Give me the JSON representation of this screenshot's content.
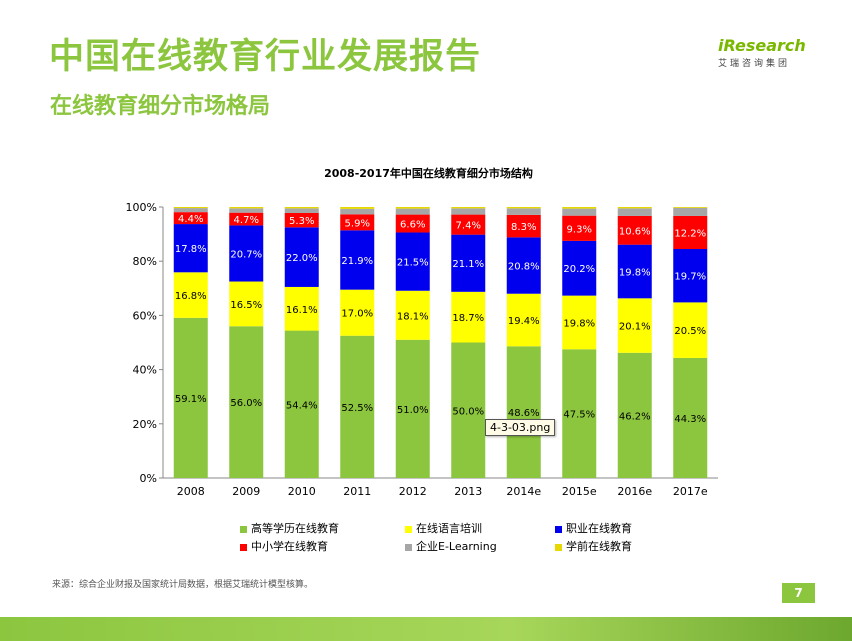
{
  "header": {
    "title": "中国在线教育行业发展报告",
    "subtitle": "在线教育细分市场格局"
  },
  "logo": {
    "brand": "iResearch",
    "tagline": "艾瑞咨询集团"
  },
  "footer": {
    "source": "来源：综合企业财报及国家统计局数据，根据艾瑞统计模型核算。",
    "page_number": "7"
  },
  "tooltip": {
    "text": "4-3-03.png"
  },
  "colors": {
    "brand_green": "#8cc63f"
  },
  "chart_data": {
    "type": "bar",
    "stacked": true,
    "title": "2008-2017年中国在线教育细分市场结构",
    "xlabel": "",
    "ylabel": "",
    "ylim": [
      0,
      100
    ],
    "yticks": [
      "0%",
      "20%",
      "40%",
      "60%",
      "80%",
      "100%"
    ],
    "categories": [
      "2008",
      "2009",
      "2010",
      "2011",
      "2012",
      "2013",
      "2014e",
      "2015e",
      "2016e",
      "2017e"
    ],
    "grid": false,
    "legend_position": "bottom",
    "series": [
      {
        "name": "高等学历在线教育",
        "color": "#8cc63f",
        "values": [
          59.1,
          56.0,
          54.4,
          52.5,
          51.0,
          50.0,
          48.6,
          47.5,
          46.2,
          44.3
        ],
        "labels": [
          "59.1%",
          "56.0%",
          "54.4%",
          "52.5%",
          "51.0%",
          "50.0%",
          "48.6%",
          "47.5%",
          "46.2%",
          "44.3%"
        ]
      },
      {
        "name": "在线语言培训",
        "color": "#ffff00",
        "values": [
          16.8,
          16.5,
          16.1,
          17.0,
          18.1,
          18.7,
          19.4,
          19.8,
          20.1,
          20.5
        ],
        "labels": [
          "16.8%",
          "16.5%",
          "16.1%",
          "17.0%",
          "18.1%",
          "18.7%",
          "19.4%",
          "19.8%",
          "20.1%",
          "20.5%"
        ]
      },
      {
        "name": "职业在线教育",
        "color": "#0000ee",
        "values": [
          17.8,
          20.7,
          22.0,
          21.9,
          21.5,
          21.1,
          20.8,
          20.2,
          19.8,
          19.7
        ],
        "labels": [
          "17.8%",
          "20.7%",
          "22.0%",
          "21.9%",
          "21.5%",
          "21.1%",
          "20.8%",
          "20.2%",
          "19.8%",
          "19.7%"
        ]
      },
      {
        "name": "中小学在线教育",
        "color": "#ff0000",
        "values": [
          4.4,
          4.7,
          5.3,
          5.9,
          6.6,
          7.4,
          8.3,
          9.3,
          10.6,
          12.2
        ],
        "labels": [
          "4.4%",
          "4.7%",
          "5.3%",
          "5.9%",
          "6.6%",
          "7.4%",
          "8.3%",
          "9.3%",
          "10.6%",
          "12.2%"
        ]
      },
      {
        "name": "企业E-Learning",
        "color": "#a6a6a6",
        "values": [
          1.5,
          1.6,
          1.7,
          2.0,
          2.2,
          2.3,
          2.4,
          2.6,
          2.8,
          3.0
        ],
        "labels": []
      },
      {
        "name": "学前在线教育",
        "color": "#e6d800",
        "values": [
          0.4,
          0.5,
          0.5,
          0.7,
          0.6,
          0.5,
          0.5,
          0.6,
          0.5,
          0.3
        ],
        "labels": []
      }
    ]
  }
}
